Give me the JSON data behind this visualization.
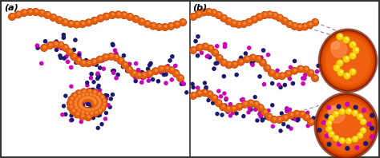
{
  "fig_width": 4.74,
  "fig_height": 1.98,
  "dpi": 100,
  "bg_color": "#ffffff",
  "orange_dark": "#B83000",
  "orange_mid": "#E06010",
  "orange_hi": "#FF9040",
  "yellow_dark": "#B89000",
  "yellow_mid": "#FFD000",
  "yellow_hi": "#FFEE80",
  "magenta": "#CC00BB",
  "dark_blue": "#1a1a6e",
  "label_fontsize": 8
}
